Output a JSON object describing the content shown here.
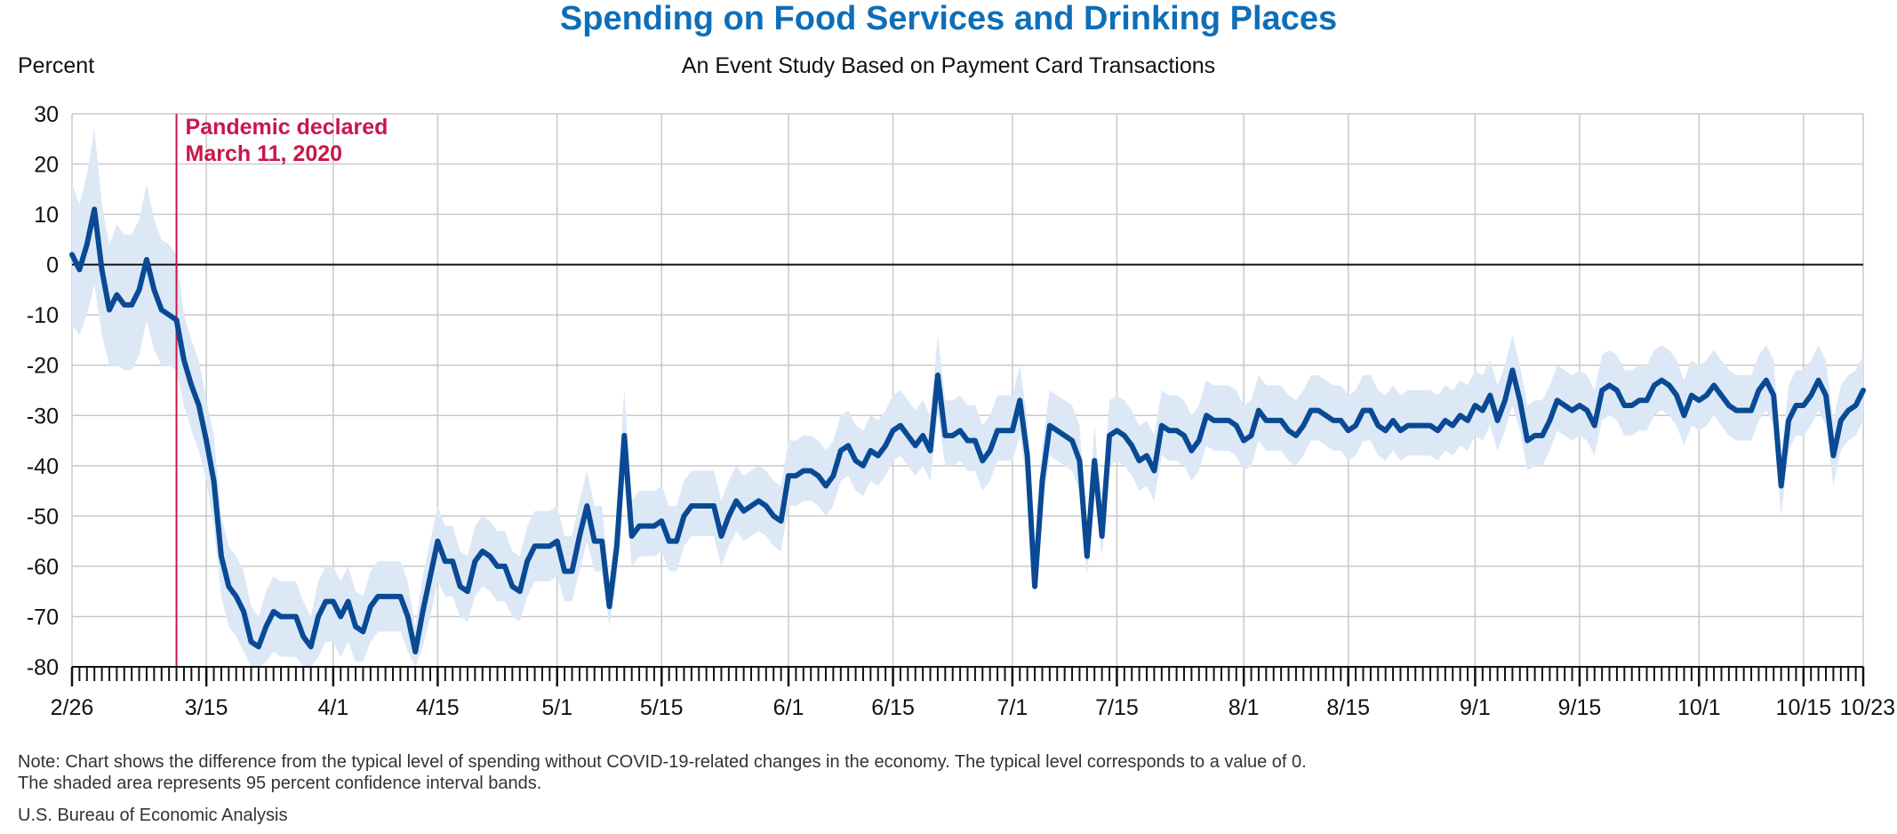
{
  "chart_data": {
    "type": "line",
    "title": "Spending on Food Services and Drinking Places",
    "subtitle": "An Event Study Based on Payment Card Transactions",
    "ylabel": "Percent",
    "xlabel": "",
    "ylim": [
      -80,
      30
    ],
    "yticks": [
      30,
      20,
      10,
      0,
      -10,
      -20,
      -30,
      -40,
      -50,
      -60,
      -70,
      -80
    ],
    "x_start": "2020-02-26",
    "x_end": "2020-10-23",
    "xticks": [
      {
        "label": "2/26",
        "date": "2020-02-26"
      },
      {
        "label": "3/15",
        "date": "2020-03-15"
      },
      {
        "label": "4/1",
        "date": "2020-04-01"
      },
      {
        "label": "4/15",
        "date": "2020-04-15"
      },
      {
        "label": "5/1",
        "date": "2020-05-01"
      },
      {
        "label": "5/15",
        "date": "2020-05-15"
      },
      {
        "label": "6/1",
        "date": "2020-06-01"
      },
      {
        "label": "6/15",
        "date": "2020-06-15"
      },
      {
        "label": "7/1",
        "date": "2020-07-01"
      },
      {
        "label": "7/15",
        "date": "2020-07-15"
      },
      {
        "label": "8/1",
        "date": "2020-08-01"
      },
      {
        "label": "8/15",
        "date": "2020-08-15"
      },
      {
        "label": "9/1",
        "date": "2020-09-01"
      },
      {
        "label": "9/15",
        "date": "2020-09-15"
      },
      {
        "label": "10/1",
        "date": "2020-10-01"
      },
      {
        "label": "10/15",
        "date": "2020-10-15"
      },
      {
        "label": "10/23",
        "date": "2020-10-23"
      }
    ],
    "grid": true,
    "annotation": {
      "date": "2020-03-11",
      "line1": "Pandemic declared",
      "line2": "March 11, 2020",
      "color": "#c8174a"
    },
    "band_color": "#dce8f6",
    "series": [
      {
        "color": "#0a4a94",
        "values": [
          2,
          -1,
          4,
          11,
          -1,
          -9,
          -6,
          -8,
          -8,
          -5,
          1,
          -5,
          -9,
          -10,
          -11,
          -19,
          -24,
          -28,
          -35,
          -43,
          -58,
          -64,
          -66,
          -69,
          -75,
          -76,
          -72,
          -69,
          -70,
          -70,
          -70,
          -74,
          -76,
          -70,
          -67,
          -67,
          -70,
          -67,
          -72,
          -73,
          -68,
          -66,
          -66,
          -66,
          -66,
          -70,
          -77,
          -69,
          -62,
          -55,
          -59,
          -59,
          -64,
          -65,
          -59,
          -57,
          -58,
          -60,
          -60,
          -64,
          -65,
          -59,
          -56,
          -56,
          -56,
          -55,
          -61,
          -61,
          -54,
          -48,
          -55,
          -55,
          -68,
          -56,
          -34,
          -54,
          -52,
          -52,
          -52,
          -51,
          -55,
          -55,
          -50,
          -48,
          -48,
          -48,
          -48,
          -54,
          -50,
          -47,
          -49,
          -48,
          -47,
          -48,
          -50,
          -51,
          -42,
          -42,
          -41,
          -41,
          -42,
          -44,
          -42,
          -37,
          -36,
          -39,
          -40,
          -37,
          -38,
          -36,
          -33,
          -32,
          -34,
          -36,
          -34,
          -37,
          -22,
          -34,
          -34,
          -33,
          -35,
          -35,
          -39,
          -37,
          -33,
          -33,
          -33,
          -27,
          -38,
          -64,
          -43,
          -32,
          -33,
          -34,
          -35,
          -39,
          -58,
          -39,
          -54,
          -34,
          -33,
          -34,
          -36,
          -39,
          -38,
          -41,
          -32,
          -33,
          -33,
          -34,
          -37,
          -35,
          -30,
          -31,
          -31,
          -31,
          -32,
          -35,
          -34,
          -29,
          -31,
          -31,
          -31,
          -33,
          -34,
          -32,
          -29,
          -29,
          -30,
          -31,
          -31,
          -33,
          -32,
          -29,
          -29,
          -32,
          -33,
          -31,
          -33,
          -32,
          -32,
          -32,
          -32,
          -33,
          -31,
          -32,
          -30,
          -31,
          -28,
          -29,
          -26,
          -31,
          -27,
          -21,
          -27,
          -35,
          -34,
          -34,
          -31,
          -27,
          -28,
          -29,
          -28,
          -29,
          -32,
          -25,
          -24,
          -25,
          -28,
          -28,
          -27,
          -27,
          -24,
          -23,
          -24,
          -26,
          -30,
          -26,
          -27,
          -26,
          -24,
          -26,
          -28,
          -29,
          -29,
          -29,
          -25,
          -23,
          -26,
          -44,
          -31,
          -28,
          -28,
          -26,
          -23,
          -26,
          -38,
          -31,
          -29,
          -28,
          -25
        ]
      }
    ],
    "band_lower": [
      -12,
      -14,
      -10,
      -4,
      -14,
      -20,
      -20,
      -21,
      -21,
      -18,
      -11,
      -17,
      -20,
      -20,
      -21,
      -28,
      -33,
      -37,
      -43,
      -52,
      -66,
      -72,
      -74,
      -77,
      -80,
      -80,
      -79,
      -77,
      -78,
      -78,
      -78,
      -80,
      -80,
      -78,
      -75,
      -75,
      -78,
      -75,
      -79,
      -79,
      -75,
      -73,
      -73,
      -73,
      -73,
      -77,
      -80,
      -76,
      -70,
      -63,
      -66,
      -66,
      -70,
      -71,
      -66,
      -64,
      -65,
      -67,
      -67,
      -70,
      -71,
      -66,
      -63,
      -63,
      -63,
      -62,
      -67,
      -67,
      -61,
      -55,
      -61,
      -61,
      -72,
      -62,
      -42,
      -60,
      -58,
      -58,
      -58,
      -57,
      -61,
      -61,
      -56,
      -54,
      -54,
      -54,
      -54,
      -60,
      -56,
      -53,
      -55,
      -54,
      -53,
      -54,
      -56,
      -57,
      -48,
      -48,
      -47,
      -47,
      -48,
      -50,
      -48,
      -43,
      -42,
      -45,
      -46,
      -43,
      -44,
      -42,
      -39,
      -38,
      -40,
      -42,
      -40,
      -43,
      -30,
      -40,
      -40,
      -39,
      -41,
      -41,
      -45,
      -43,
      -39,
      -39,
      -39,
      -34,
      -44,
      -66,
      -49,
      -38,
      -39,
      -40,
      -41,
      -45,
      -62,
      -45,
      -58,
      -40,
      -39,
      -40,
      -42,
      -45,
      -44,
      -47,
      -38,
      -39,
      -39,
      -40,
      -43,
      -41,
      -36,
      -37,
      -37,
      -37,
      -38,
      -41,
      -40,
      -35,
      -37,
      -37,
      -37,
      -39,
      -40,
      -38,
      -35,
      -35,
      -36,
      -37,
      -37,
      -39,
      -38,
      -35,
      -35,
      -38,
      -39,
      -37,
      -39,
      -38,
      -38,
      -38,
      -38,
      -39,
      -37,
      -38,
      -36,
      -37,
      -34,
      -35,
      -32,
      -37,
      -33,
      -28,
      -33,
      -41,
      -40,
      -40,
      -37,
      -33,
      -34,
      -35,
      -34,
      -35,
      -38,
      -31,
      -30,
      -31,
      -34,
      -34,
      -33,
      -33,
      -30,
      -29,
      -30,
      -32,
      -36,
      -32,
      -33,
      -32,
      -30,
      -32,
      -34,
      -35,
      -35,
      -35,
      -31,
      -29,
      -32,
      -50,
      -37,
      -34,
      -34,
      -32,
      -29,
      -32,
      -44,
      -37,
      -35,
      -34,
      -31
    ],
    "band_upper": [
      16,
      12,
      18,
      27,
      12,
      4,
      8,
      6,
      6,
      9,
      16,
      9,
      5,
      4,
      2,
      -10,
      -15,
      -19,
      -27,
      -34,
      -50,
      -56,
      -58,
      -61,
      -68,
      -70,
      -65,
      -62,
      -63,
      -63,
      -63,
      -67,
      -70,
      -63,
      -60,
      -60,
      -63,
      -60,
      -65,
      -66,
      -61,
      -59,
      -59,
      -59,
      -59,
      -63,
      -72,
      -62,
      -55,
      -48,
      -52,
      -52,
      -57,
      -58,
      -52,
      -50,
      -51,
      -53,
      -53,
      -57,
      -58,
      -52,
      -49,
      -49,
      -49,
      -48,
      -54,
      -54,
      -47,
      -41,
      -48,
      -48,
      -63,
      -49,
      -25,
      -47,
      -45,
      -45,
      -45,
      -44,
      -48,
      -48,
      -43,
      -41,
      -41,
      -41,
      -41,
      -47,
      -43,
      -40,
      -42,
      -41,
      -40,
      -41,
      -43,
      -44,
      -35,
      -35,
      -34,
      -34,
      -35,
      -37,
      -35,
      -30,
      -29,
      -32,
      -33,
      -30,
      -31,
      -29,
      -26,
      -25,
      -27,
      -29,
      -27,
      -30,
      -14,
      -27,
      -27,
      -26,
      -28,
      -28,
      -32,
      -30,
      -26,
      -26,
      -26,
      -20,
      -31,
      -60,
      -36,
      -25,
      -26,
      -27,
      -28,
      -32,
      -53,
      -32,
      -49,
      -27,
      -26,
      -27,
      -29,
      -32,
      -31,
      -34,
      -25,
      -26,
      -26,
      -27,
      -30,
      -28,
      -23,
      -24,
      -24,
      -24,
      -25,
      -28,
      -27,
      -22,
      -24,
      -24,
      -24,
      -26,
      -27,
      -25,
      -22,
      -22,
      -23,
      -24,
      -24,
      -26,
      -25,
      -22,
      -22,
      -25,
      -26,
      -24,
      -26,
      -25,
      -25,
      -25,
      -25,
      -26,
      -24,
      -25,
      -23,
      -24,
      -21,
      -22,
      -19,
      -24,
      -20,
      -14,
      -20,
      -28,
      -27,
      -27,
      -24,
      -20,
      -21,
      -22,
      -21,
      -22,
      -25,
      -18,
      -17,
      -18,
      -21,
      -21,
      -20,
      -20,
      -17,
      -16,
      -17,
      -19,
      -23,
      -19,
      -20,
      -19,
      -17,
      -19,
      -21,
      -22,
      -22,
      -22,
      -18,
      -16,
      -19,
      -38,
      -24,
      -21,
      -21,
      -19,
      -16,
      -19,
      -31,
      -24,
      -22,
      -21,
      -18
    ]
  },
  "note_line1": "Note: Chart shows the difference from the typical level of spending without COVID-19-related changes in the economy. The typical level corresponds to a value of 0.",
  "note_line2": "The shaded area represents 95 percent confidence interval bands.",
  "source": "U.S. Bureau of Economic Analysis"
}
